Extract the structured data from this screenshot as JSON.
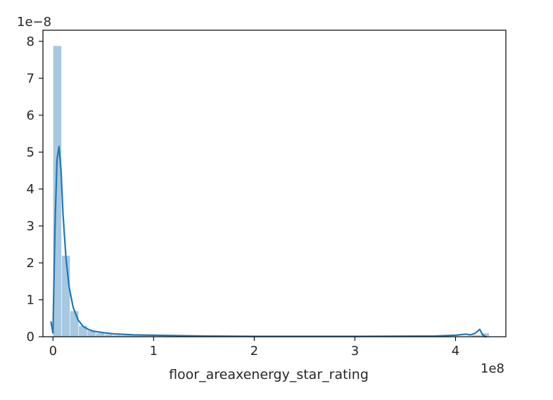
{
  "chart_data": {
    "type": "histogram",
    "title": "",
    "xlabel": "floor_areaxenergy_star_rating",
    "ylabel": "",
    "x_offset_text": "1e8",
    "y_offset_text": "1e−8",
    "xlim": [
      -0.1,
      4.5
    ],
    "ylim": [
      0,
      8.3
    ],
    "x_ticks": [
      0,
      1,
      2,
      3,
      4
    ],
    "x_tick_labels": [
      "0",
      "1",
      "2",
      "3",
      "4"
    ],
    "y_ticks": [
      0,
      1,
      2,
      3,
      4,
      5,
      6,
      7,
      8
    ],
    "y_tick_labels": [
      "0",
      "1",
      "2",
      "3",
      "4",
      "5",
      "6",
      "7",
      "8"
    ],
    "grid": false,
    "bar_color": "#a6c8e0",
    "line_color": "#1f77b4",
    "bin_width": 0.085,
    "bins": [
      {
        "x0": 0.0,
        "height": 7.88
      },
      {
        "x0": 0.085,
        "height": 2.2
      },
      {
        "x0": 0.17,
        "height": 0.7
      },
      {
        "x0": 0.255,
        "height": 0.3
      },
      {
        "x0": 0.34,
        "height": 0.17
      },
      {
        "x0": 0.425,
        "height": 0.1
      },
      {
        "x0": 0.51,
        "height": 0.07
      },
      {
        "x0": 0.595,
        "height": 0.05
      },
      {
        "x0": 0.68,
        "height": 0.04
      },
      {
        "x0": 0.765,
        "height": 0.03
      },
      {
        "x0": 0.85,
        "height": 0.03
      },
      {
        "x0": 0.935,
        "height": 0.02
      },
      {
        "x0": 1.02,
        "height": 0.02
      },
      {
        "x0": 1.105,
        "height": 0.02
      },
      {
        "x0": 1.19,
        "height": 0.01
      },
      {
        "x0": 1.275,
        "height": 0.01
      },
      {
        "x0": 1.36,
        "height": 0.01
      },
      {
        "x0": 1.445,
        "height": 0.01
      },
      {
        "x0": 4.165,
        "height": 0.05
      },
      {
        "x0": 4.25,
        "height": 0.1
      }
    ],
    "kde": {
      "x": [
        -0.02,
        0.0,
        0.02,
        0.04,
        0.06,
        0.08,
        0.1,
        0.13,
        0.16,
        0.2,
        0.25,
        0.3,
        0.35,
        0.4,
        0.5,
        0.6,
        0.8,
        1.0,
        1.5,
        2.0,
        3.0,
        3.8,
        4.0,
        4.1,
        4.15,
        4.2,
        4.24,
        4.27,
        4.3
      ],
      "y": [
        0.4,
        0.1,
        3.0,
        4.8,
        5.15,
        4.5,
        3.3,
        2.1,
        1.35,
        0.8,
        0.45,
        0.28,
        0.2,
        0.15,
        0.11,
        0.08,
        0.05,
        0.04,
        0.02,
        0.01,
        0.01,
        0.02,
        0.04,
        0.07,
        0.05,
        0.1,
        0.2,
        0.05,
        0.0
      ]
    }
  }
}
